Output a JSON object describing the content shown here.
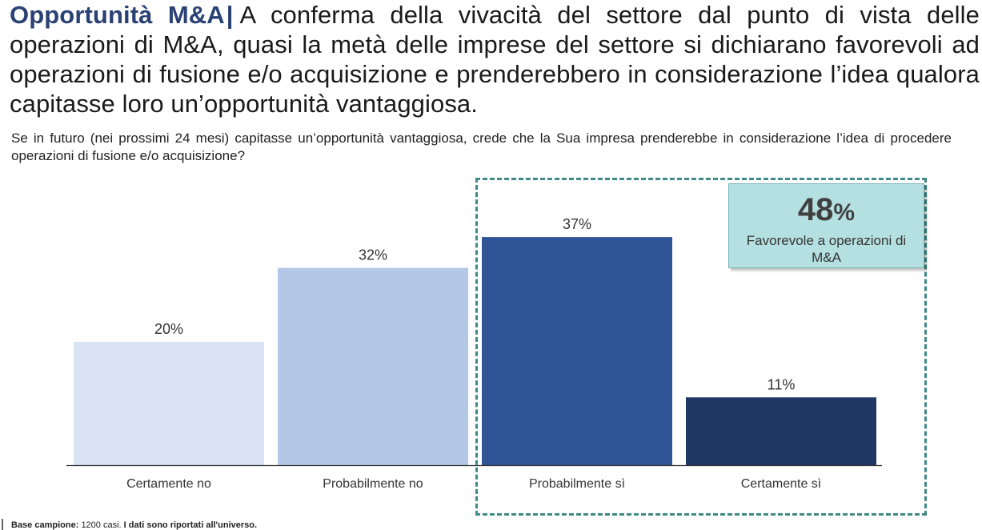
{
  "header": {
    "title": "Opportunità M&A",
    "separator": "|",
    "text": "A conferma della vivacità del settore dal punto di vista delle operazioni di M&A, quasi la metà delle imprese del settore si dichiarano favorevoli ad operazioni di fusione e/o acquisizione e prenderebbero in considerazione l’idea qualora capitasse loro un’opportunità vantaggiosa."
  },
  "question": "Se in futuro (nei prossimi 24 mesi) capitasse un’opportunità vantaggiosa, crede che la Sua impresa prenderebbe in considerazione l’idea di procedere operazioni di fusione e/o acquisizione?",
  "callout": {
    "value": "48",
    "unit": "%",
    "label": "Favorevole a operazioni di M&A"
  },
  "footer": {
    "base_label": "Base campione:",
    "base_text": "1200 casi.",
    "note": "I dati sono riportati all'universo."
  },
  "chart_data": {
    "type": "bar",
    "categories": [
      "Certamente no",
      "Probabilmente no",
      "Probabilmente sì",
      "Certamente sì"
    ],
    "values": [
      20,
      32,
      37,
      11
    ],
    "value_labels": [
      "20%",
      "32%",
      "37%",
      "11%"
    ],
    "colors": [
      "#dae3f3",
      "#b4c7e7",
      "#2f5597",
      "#203864"
    ],
    "ylim": [
      0,
      50
    ],
    "grid": false,
    "highlight": {
      "categories": [
        "Probabilmente sì",
        "Certamente sì"
      ],
      "border_color": "#3e8a86"
    }
  }
}
